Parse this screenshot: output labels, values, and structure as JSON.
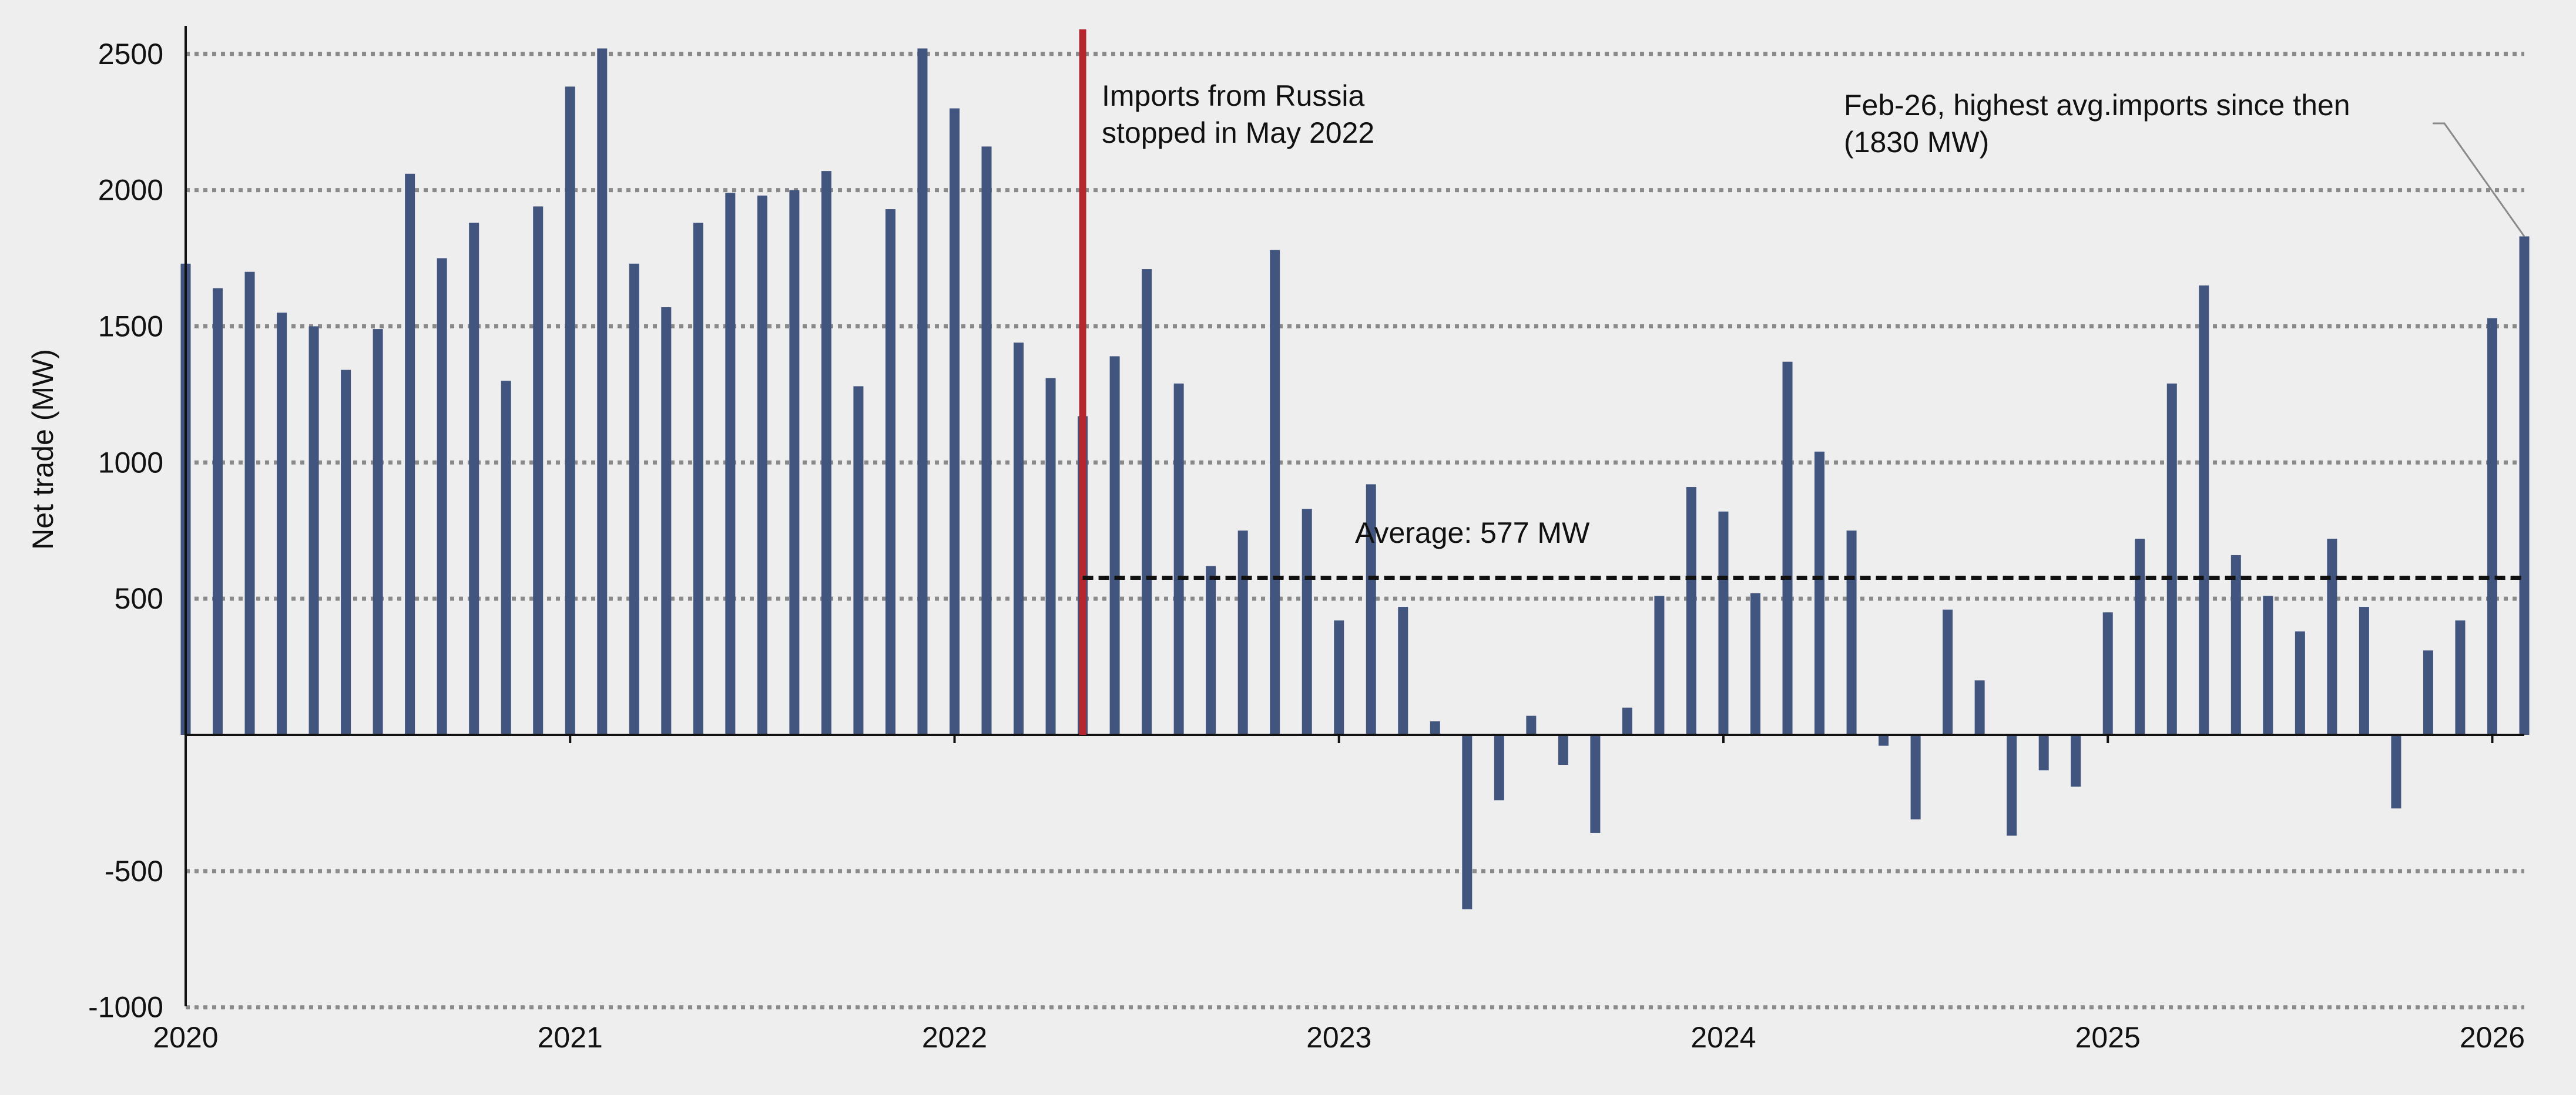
{
  "chart_data": {
    "type": "bar",
    "ylabel": "Net trade (MW)",
    "ylim": [
      -1000,
      2600
    ],
    "yticks": [
      2500,
      2000,
      1500,
      1000,
      500,
      -500,
      -1000
    ],
    "xlim": [
      "2020-01",
      "2026-02"
    ],
    "year_labels": [
      "2020",
      "2021",
      "2022",
      "2023",
      "2024",
      "2025",
      "2026"
    ],
    "grid": "horizontal dotted",
    "colors": {
      "bar": "#42557f",
      "event_line": "#b5262e",
      "average_line": "#111111",
      "grid": "#8a8a8a",
      "background": "#eeeeef"
    },
    "series": [
      {
        "months": [
          "2020-01",
          "2020-02",
          "2020-03",
          "2020-04",
          "2020-05",
          "2020-06",
          "2020-07",
          "2020-08",
          "2020-09",
          "2020-10",
          "2020-11",
          "2020-12",
          "2021-01",
          "2021-02",
          "2021-03",
          "2021-04",
          "2021-05",
          "2021-06",
          "2021-07",
          "2021-08",
          "2021-09",
          "2021-10",
          "2021-11",
          "2021-12",
          "2022-01",
          "2022-02",
          "2022-03",
          "2022-04",
          "2022-05",
          "2022-06",
          "2022-07",
          "2022-08",
          "2022-09",
          "2022-10",
          "2022-11",
          "2022-12",
          "2023-01",
          "2023-02",
          "2023-03",
          "2023-04",
          "2023-05",
          "2023-06",
          "2023-07",
          "2023-08",
          "2023-09",
          "2023-10",
          "2023-11",
          "2023-12",
          "2024-01",
          "2024-02",
          "2024-03",
          "2024-04",
          "2024-05",
          "2024-06",
          "2024-07",
          "2024-08",
          "2024-09",
          "2024-10",
          "2024-11",
          "2024-12",
          "2025-01",
          "2025-02",
          "2025-03",
          "2025-04",
          "2025-05",
          "2025-06",
          "2025-07",
          "2025-08",
          "2025-09",
          "2025-10",
          "2025-11",
          "2025-12",
          "2026-01",
          "2026-02"
        ],
        "values": [
          1730,
          1640,
          1700,
          1550,
          1500,
          1340,
          1490,
          2060,
          1750,
          1880,
          1300,
          1940,
          2380,
          2520,
          1730,
          1570,
          1880,
          1990,
          1980,
          2000,
          2070,
          1280,
          1930,
          2520,
          2300,
          2160,
          1440,
          1310,
          1170,
          1390,
          1710,
          1290,
          620,
          750,
          1780,
          830,
          420,
          920,
          470,
          50,
          -640,
          -240,
          70,
          -110,
          -360,
          100,
          510,
          910,
          820,
          520,
          1370,
          1040,
          750,
          -40,
          -310,
          460,
          200,
          -370,
          -130,
          -190,
          450,
          720,
          1290,
          1650,
          660,
          510,
          380,
          720,
          470,
          -270,
          310,
          420,
          1530,
          1830
        ]
      }
    ],
    "annotations": {
      "event_line_month": "2022-05",
      "event_line": [
        "Imports from Russia",
        "stopped in May 2022"
      ],
      "average": {
        "label": "Average: 577 MW",
        "value": 577,
        "start_month": "2022-05"
      },
      "highlight": {
        "lines": [
          "Feb-26, highest avg.imports since then",
          "(1830 MW)"
        ],
        "month": "2026-02"
      }
    }
  }
}
